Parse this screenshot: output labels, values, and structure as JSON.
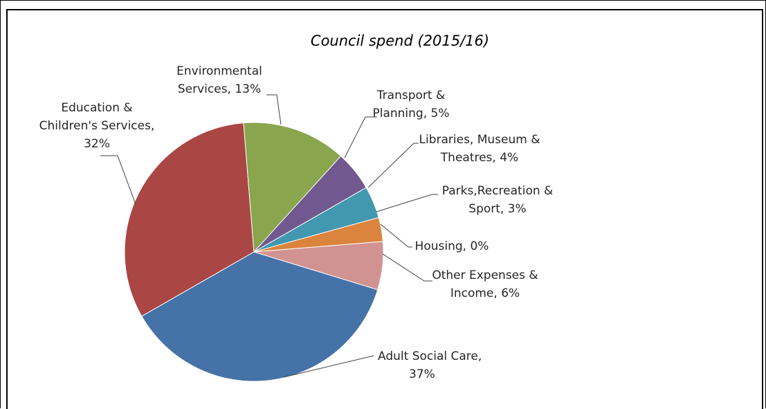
{
  "chart_data": {
    "type": "pie",
    "title": "Council spend (2015/16)",
    "slices": [
      {
        "name": "Adult Social Care",
        "value": 37,
        "color": "#4572A7",
        "label_lines": [
          "Adult Social Care,",
          "37%"
        ]
      },
      {
        "name": "Education & Children's Services",
        "value": 32,
        "color": "#AA4643",
        "label_lines": [
          "Education &",
          "Children's Services,",
          "32%"
        ]
      },
      {
        "name": "Environmental Services",
        "value": 13,
        "color": "#89A54E",
        "label_lines": [
          "Environmental",
          "Services, 13%"
        ]
      },
      {
        "name": "Transport & Planning",
        "value": 5,
        "color": "#71588F",
        "label_lines": [
          "Transport &",
          "Planning, 5%"
        ]
      },
      {
        "name": "Libraries, Museum & Theatres",
        "value": 4,
        "color": "#4198AF",
        "label_lines": [
          "Libraries, Museum &",
          "Theatres, 4%"
        ]
      },
      {
        "name": "Parks,Recreation & Sport",
        "value": 3,
        "color": "#DB843D",
        "label_lines": [
          "Parks,Recreation &",
          "Sport, 3%"
        ]
      },
      {
        "name": "Housing",
        "value": 0,
        "color": "#93A9CF",
        "label_lines": [
          "Housing, 0%"
        ]
      },
      {
        "name": "Other Expenses & Income",
        "value": 6,
        "color": "#D19392",
        "label_lines": [
          "Other Expenses &",
          "Income, 6%"
        ]
      }
    ]
  }
}
